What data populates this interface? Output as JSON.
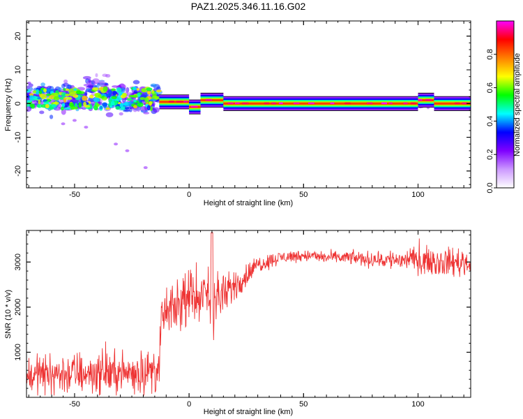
{
  "title": "PAZ1.2025.346.11.16.G02",
  "colors": {
    "frame": "#000000",
    "snr_line": "#ee3333",
    "colorbar_stops": [
      "#ffffff",
      "#cc99ff",
      "#7f00ff",
      "#0000ff",
      "#00ffff",
      "#00ff00",
      "#ffff00",
      "#ff7f00",
      "#ff0000",
      "#ff00ff"
    ]
  },
  "chart_data": [
    {
      "type": "heatmap",
      "name": "spectrogram",
      "xlabel": "Height of straight line (km)",
      "ylabel": "Frequency (Hz)",
      "xlim": [
        -71,
        123
      ],
      "ylim": [
        -25,
        24.5
      ],
      "xticks": [
        -50,
        0,
        50,
        100
      ],
      "xtick_labels": [
        "-50",
        "0",
        "50",
        "100"
      ],
      "yticks": [
        -20,
        -10,
        0,
        10,
        20
      ],
      "ytick_labels": [
        "-20",
        "-10",
        "0",
        "10",
        "20"
      ],
      "ridge": {
        "description": "direct-signal ridge at ~0 Hz",
        "x_start": -13,
        "x_end": 123,
        "segments": [
          {
            "x": [
              -13,
              0
            ],
            "freq": 0.5
          },
          {
            "x": [
              0,
              5
            ],
            "freq": -1.0
          },
          {
            "x": [
              5,
              15
            ],
            "freq": 1.0
          },
          {
            "x": [
              15,
              100
            ],
            "freq": 0.0
          },
          {
            "x": [
              100,
              107
            ],
            "freq": 1.0
          },
          {
            "x": [
              107,
              123
            ],
            "freq": 0.0
          }
        ]
      },
      "scatter_region": {
        "x": [
          -71,
          -13
        ],
        "freq": [
          -20,
          9
        ]
      },
      "colorbar": {
        "label": "Normalized spectral amplitude",
        "range": [
          0,
          1
        ],
        "ticks": [
          0.0,
          0.2,
          0.4,
          0.6,
          0.8
        ],
        "tick_labels": [
          "0.0",
          "0.2",
          "0.4",
          "0.6",
          "0.8"
        ]
      }
    },
    {
      "type": "line",
      "name": "snr",
      "xlabel": "Height of straight line (km)",
      "ylabel": "SNR (10 * v/v)",
      "xlim": [
        -71,
        123
      ],
      "ylim": [
        0,
        3700
      ],
      "xticks": [
        -50,
        0,
        50,
        100
      ],
      "xtick_labels": [
        "-50",
        "0",
        "50",
        "100"
      ],
      "yticks": [
        1000,
        2000,
        3000
      ],
      "ytick_labels": [
        "1000",
        "2000",
        "3000"
      ],
      "series": [
        {
          "name": "SNR",
          "x": [
            -71,
            -60,
            -50,
            -40,
            -30,
            -20,
            -13,
            -12,
            -5,
            0,
            5,
            10,
            15,
            20,
            25,
            30,
            40,
            50,
            60,
            70,
            80,
            90,
            100,
            110,
            120,
            123
          ],
          "mean": [
            500,
            520,
            530,
            550,
            540,
            560,
            600,
            1800,
            2000,
            2200,
            2300,
            2350,
            2200,
            2500,
            2700,
            2950,
            3100,
            3150,
            3100,
            3100,
            3050,
            3050,
            3050,
            3000,
            3000,
            2950
          ],
          "spread": [
            350,
            380,
            400,
            380,
            380,
            400,
            400,
            420,
            400,
            450,
            500,
            550,
            400,
            300,
            220,
            160,
            120,
            110,
            110,
            120,
            150,
            200,
            220,
            260,
            280,
            250
          ]
        }
      ]
    }
  ]
}
